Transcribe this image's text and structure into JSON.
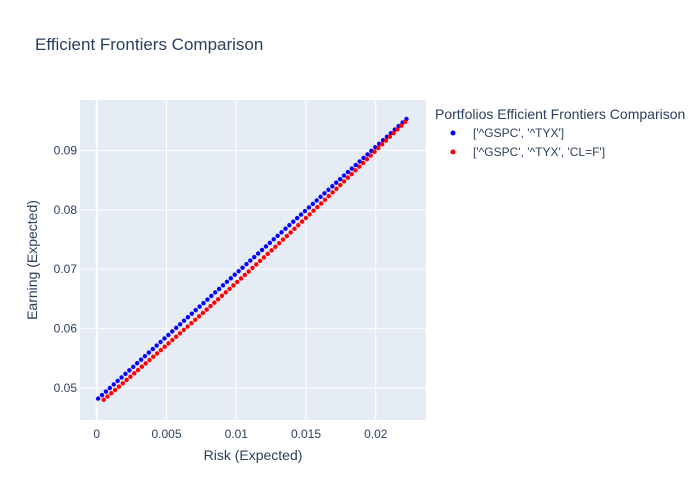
{
  "chart_data": {
    "type": "scatter",
    "title": "Efficient Frontiers Comparison",
    "xlabel": "Risk (Expected)",
    "ylabel": "Earning (Expected)",
    "xlim": [
      -0.0012,
      0.0236
    ],
    "ylim": [
      0.0446,
      0.0985
    ],
    "xticks": [
      0,
      0.005,
      0.01,
      0.015,
      0.02
    ],
    "xtick_labels": [
      "0",
      "0.005",
      "0.01",
      "0.015",
      "0.02"
    ],
    "yticks": [
      0.05,
      0.06,
      0.07,
      0.08,
      0.09
    ],
    "ytick_labels": [
      "0.05",
      "0.06",
      "0.07",
      "0.08",
      "0.09"
    ],
    "grid": true,
    "background": "#e5ecf6",
    "legend": {
      "title": "Portfolios Efficient Frontiers Comparison",
      "placement": "right"
    },
    "series": [
      {
        "name": "['^GSPC', '^TYX']",
        "color": "#0000ff",
        "x_start": 0.0001,
        "x_end": 0.0222,
        "y_start": 0.0482,
        "y_end": 0.0953,
        "curvature": 0.0,
        "n_points": 80
      },
      {
        "name": "['^GSPC', '^TYX', 'CL=F']",
        "color": "#ff0000",
        "x_start": 0.0005,
        "x_end": 0.0221,
        "y_start": 0.048,
        "y_end": 0.0948,
        "curvature": 0.0009,
        "n_points": 80
      }
    ]
  }
}
